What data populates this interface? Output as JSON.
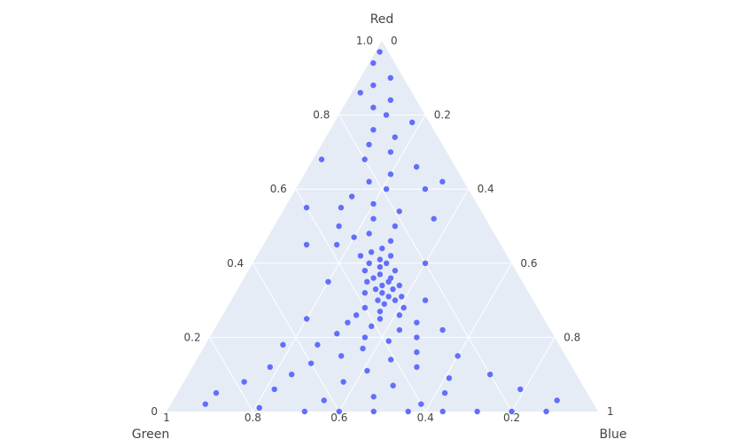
{
  "chart_data": {
    "type": "scatter",
    "subtype": "ternary",
    "title": "",
    "axes": {
      "a": {
        "title": "Red",
        "range": [
          0,
          1
        ],
        "ticks": [
          0,
          0.2,
          0.4,
          0.6,
          0.8,
          1.0
        ],
        "tick_labels": [
          "0",
          "0.2",
          "0.4",
          "0.6",
          "0.8",
          "1.0"
        ]
      },
      "b": {
        "title": "Green",
        "range": [
          0,
          1
        ],
        "ticks": [
          0.2,
          0.4,
          0.6,
          0.8,
          1
        ],
        "tick_labels": [
          "0.2",
          "0.4",
          "0.6",
          "0.8",
          "1"
        ]
      },
      "c": {
        "title": "Blue",
        "range": [
          0,
          1
        ],
        "ticks": [
          0,
          0.2,
          0.4,
          0.6,
          0.8,
          1
        ],
        "tick_labels": [
          "0",
          "0.2",
          "0.4",
          "0.6",
          "0.8",
          "1"
        ]
      }
    },
    "grid": true,
    "colors": {
      "marker": "#636efa",
      "plot_background": "#e5ecf6",
      "grid": "#ffffff",
      "paper_background": "#ffffff"
    },
    "series": [
      {
        "points": [
          [
            0.97,
            0.02,
            0.01
          ],
          [
            0.94,
            0.05,
            0.01
          ],
          [
            0.9,
            0.03,
            0.07
          ],
          [
            0.88,
            0.08,
            0.04
          ],
          [
            0.86,
            0.12,
            0.02
          ],
          [
            0.84,
            0.06,
            0.1
          ],
          [
            0.82,
            0.11,
            0.07
          ],
          [
            0.8,
            0.09,
            0.11
          ],
          [
            0.78,
            0.04,
            0.18
          ],
          [
            0.76,
            0.14,
            0.1
          ],
          [
            0.74,
            0.1,
            0.16
          ],
          [
            0.72,
            0.17,
            0.11
          ],
          [
            0.7,
            0.13,
            0.17
          ],
          [
            0.68,
            0.2,
            0.12
          ],
          [
            0.66,
            0.09,
            0.25
          ],
          [
            0.64,
            0.16,
            0.2
          ],
          [
            0.62,
            0.22,
            0.16
          ],
          [
            0.6,
            0.19,
            0.21
          ],
          [
            0.58,
            0.28,
            0.14
          ],
          [
            0.56,
            0.24,
            0.2
          ],
          [
            0.55,
            0.32,
            0.13
          ],
          [
            0.54,
            0.19,
            0.27
          ],
          [
            0.52,
            0.26,
            0.22
          ],
          [
            0.5,
            0.35,
            0.15
          ],
          [
            0.5,
            0.22,
            0.28
          ],
          [
            0.48,
            0.29,
            0.23
          ],
          [
            0.47,
            0.33,
            0.2
          ],
          [
            0.46,
            0.25,
            0.29
          ],
          [
            0.45,
            0.38,
            0.17
          ],
          [
            0.44,
            0.28,
            0.28
          ],
          [
            0.43,
            0.31,
            0.26
          ],
          [
            0.42,
            0.34,
            0.24
          ],
          [
            0.42,
            0.27,
            0.31
          ],
          [
            0.41,
            0.3,
            0.29
          ],
          [
            0.4,
            0.33,
            0.27
          ],
          [
            0.4,
            0.29,
            0.31
          ],
          [
            0.39,
            0.31,
            0.3
          ],
          [
            0.38,
            0.35,
            0.27
          ],
          [
            0.38,
            0.28,
            0.34
          ],
          [
            0.37,
            0.32,
            0.31
          ],
          [
            0.36,
            0.3,
            0.34
          ],
          [
            0.36,
            0.34,
            0.3
          ],
          [
            0.35,
            0.31,
            0.34
          ],
          [
            0.35,
            0.36,
            0.29
          ],
          [
            0.34,
            0.33,
            0.33
          ],
          [
            0.34,
            0.29,
            0.37
          ],
          [
            0.33,
            0.35,
            0.32
          ],
          [
            0.33,
            0.31,
            0.36
          ],
          [
            0.32,
            0.34,
            0.34
          ],
          [
            0.32,
            0.38,
            0.3
          ],
          [
            0.31,
            0.3,
            0.39
          ],
          [
            0.31,
            0.33,
            0.36
          ],
          [
            0.3,
            0.36,
            0.34
          ],
          [
            0.3,
            0.32,
            0.38
          ],
          [
            0.29,
            0.35,
            0.36
          ],
          [
            0.28,
            0.4,
            0.32
          ],
          [
            0.28,
            0.31,
            0.41
          ],
          [
            0.27,
            0.37,
            0.36
          ],
          [
            0.26,
            0.43,
            0.31
          ],
          [
            0.26,
            0.33,
            0.41
          ],
          [
            0.25,
            0.38,
            0.37
          ],
          [
            0.24,
            0.46,
            0.3
          ],
          [
            0.24,
            0.3,
            0.46
          ],
          [
            0.23,
            0.41,
            0.36
          ],
          [
            0.22,
            0.35,
            0.43
          ],
          [
            0.21,
            0.5,
            0.29
          ],
          [
            0.2,
            0.44,
            0.36
          ],
          [
            0.2,
            0.32,
            0.48
          ],
          [
            0.19,
            0.39,
            0.42
          ],
          [
            0.18,
            0.56,
            0.26
          ],
          [
            0.17,
            0.46,
            0.37
          ],
          [
            0.16,
            0.34,
            0.5
          ],
          [
            0.15,
            0.52,
            0.33
          ],
          [
            0.14,
            0.41,
            0.45
          ],
          [
            0.13,
            0.6,
            0.27
          ],
          [
            0.12,
            0.36,
            0.52
          ],
          [
            0.11,
            0.48,
            0.41
          ],
          [
            0.1,
            0.66,
            0.24
          ],
          [
            0.09,
            0.3,
            0.61
          ],
          [
            0.08,
            0.55,
            0.37
          ],
          [
            0.07,
            0.44,
            0.49
          ],
          [
            0.06,
            0.72,
            0.22
          ],
          [
            0.05,
            0.33,
            0.62
          ],
          [
            0.04,
            0.5,
            0.46
          ],
          [
            0.03,
            0.62,
            0.35
          ],
          [
            0.02,
            0.4,
            0.58
          ],
          [
            0.01,
            0.78,
            0.21
          ],
          [
            0.0,
            0.52,
            0.48
          ],
          [
            0.0,
            0.44,
            0.56
          ],
          [
            0.0,
            0.36,
            0.64
          ],
          [
            0.0,
            0.28,
            0.72
          ],
          [
            0.0,
            0.6,
            0.4
          ],
          [
            0.0,
            0.68,
            0.32
          ],
          [
            0.0,
            0.2,
            0.8
          ],
          [
            0.0,
            0.12,
            0.88
          ],
          [
            0.55,
            0.4,
            0.05
          ],
          [
            0.6,
            0.1,
            0.3
          ],
          [
            0.45,
            0.45,
            0.1
          ],
          [
            0.4,
            0.2,
            0.4
          ],
          [
            0.35,
            0.45,
            0.2
          ],
          [
            0.3,
            0.25,
            0.45
          ],
          [
            0.25,
            0.55,
            0.2
          ],
          [
            0.22,
            0.25,
            0.53
          ],
          [
            0.18,
            0.64,
            0.18
          ],
          [
            0.15,
            0.25,
            0.6
          ],
          [
            0.12,
            0.7,
            0.18
          ],
          [
            0.1,
            0.2,
            0.7
          ],
          [
            0.08,
            0.78,
            0.14
          ],
          [
            0.06,
            0.15,
            0.79
          ],
          [
            0.05,
            0.86,
            0.09
          ],
          [
            0.03,
            0.08,
            0.89
          ],
          [
            0.02,
            0.9,
            0.08
          ],
          [
            0.68,
            0.3,
            0.02
          ],
          [
            0.62,
            0.05,
            0.33
          ],
          [
            0.52,
            0.12,
            0.36
          ]
        ]
      }
    ]
  }
}
